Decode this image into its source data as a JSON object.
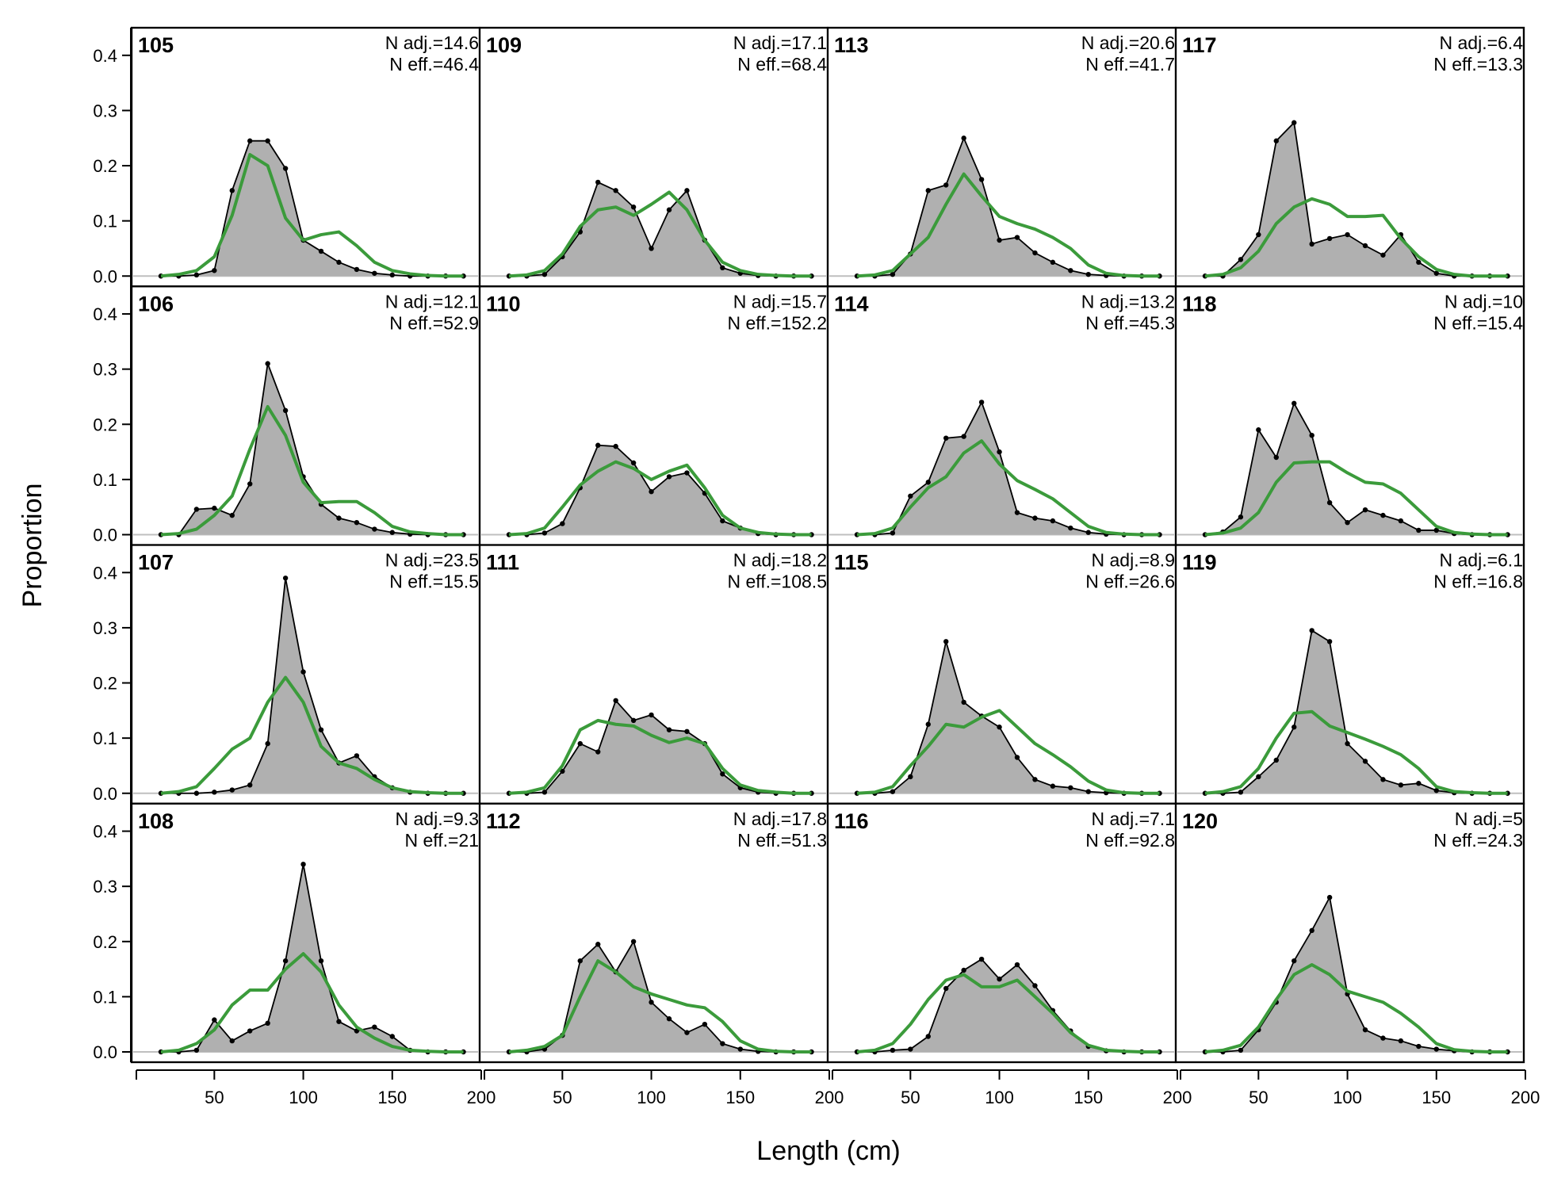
{
  "chart_data": {
    "type": "area",
    "xlabel": "Length (cm)",
    "ylabel": "Proportion",
    "xlim": [
      20,
      200
    ],
    "ylim": [
      0,
      0.45
    ],
    "x_ticks": [
      50,
      100,
      150,
      200
    ],
    "y_ticks": [
      0.0,
      0.1,
      0.2,
      0.3,
      0.4
    ],
    "y_tick_labels": [
      "0.0",
      "0.1",
      "0.2",
      "0.3",
      "0.4"
    ],
    "grid": false,
    "colors": {
      "observed_fill": "#b0b0b0",
      "observed_line": "#000000",
      "expected_line": "#3b9b3b",
      "baseline": "#bfbfbf"
    },
    "x": [
      20,
      30,
      40,
      50,
      60,
      70,
      80,
      90,
      100,
      110,
      120,
      130,
      140,
      150,
      160,
      170,
      180,
      190
    ],
    "panels": [
      {
        "id": "105",
        "n_adj": "N adj.=14.6",
        "n_eff": "N eff.=46.4",
        "obs": [
          0,
          0,
          0.002,
          0.01,
          0.155,
          0.245,
          0.245,
          0.195,
          0.065,
          0.045,
          0.025,
          0.012,
          0.005,
          0.002,
          0,
          0,
          0,
          0
        ],
        "exp": [
          0,
          0.003,
          0.01,
          0.035,
          0.11,
          0.22,
          0.2,
          0.105,
          0.065,
          0.075,
          0.08,
          0.055,
          0.025,
          0.01,
          0.004,
          0.001,
          0,
          0
        ]
      },
      {
        "id": "106",
        "n_adj": "N adj.=12.1",
        "n_eff": "N eff.=52.9",
        "obs": [
          0,
          0,
          0.046,
          0.048,
          0.035,
          0.092,
          0.31,
          0.225,
          0.105,
          0.055,
          0.03,
          0.022,
          0.01,
          0.004,
          0.001,
          0,
          0,
          0
        ],
        "exp": [
          0,
          0.002,
          0.01,
          0.035,
          0.07,
          0.155,
          0.232,
          0.18,
          0.095,
          0.058,
          0.06,
          0.06,
          0.04,
          0.015,
          0.005,
          0.002,
          0,
          0
        ]
      },
      {
        "id": "107",
        "n_adj": "N adj.=23.5",
        "n_eff": "N eff.=15.5",
        "obs": [
          0,
          0,
          0,
          0.002,
          0.006,
          0.015,
          0.09,
          0.39,
          0.22,
          0.115,
          0.055,
          0.068,
          0.03,
          0.01,
          0.002,
          0,
          0,
          0
        ],
        "exp": [
          0,
          0.003,
          0.012,
          0.045,
          0.08,
          0.1,
          0.165,
          0.21,
          0.165,
          0.085,
          0.055,
          0.045,
          0.025,
          0.01,
          0.003,
          0.001,
          0,
          0
        ]
      },
      {
        "id": "108",
        "n_adj": "N adj.=9.3",
        "n_eff": "N eff.=21",
        "obs": [
          0,
          0,
          0.003,
          0.058,
          0.02,
          0.038,
          0.052,
          0.165,
          0.34,
          0.165,
          0.055,
          0.038,
          0.045,
          0.028,
          0.003,
          0,
          0,
          0
        ],
        "exp": [
          0,
          0.003,
          0.015,
          0.04,
          0.085,
          0.112,
          0.112,
          0.15,
          0.178,
          0.145,
          0.085,
          0.045,
          0.025,
          0.01,
          0.003,
          0.001,
          0,
          0
        ]
      },
      {
        "id": "109",
        "n_adj": "N adj.=17.1",
        "n_eff": "N eff.=68.4",
        "obs": [
          0,
          0,
          0.003,
          0.035,
          0.08,
          0.17,
          0.155,
          0.125,
          0.05,
          0.12,
          0.155,
          0.065,
          0.015,
          0.005,
          0.001,
          0,
          0,
          0
        ],
        "exp": [
          0,
          0.002,
          0.01,
          0.04,
          0.09,
          0.12,
          0.125,
          0.11,
          0.13,
          0.152,
          0.12,
          0.065,
          0.025,
          0.01,
          0.003,
          0.001,
          0,
          0
        ]
      },
      {
        "id": "110",
        "n_adj": "N adj.=15.7",
        "n_eff": "N eff.=152.2",
        "obs": [
          0,
          0,
          0.003,
          0.02,
          0.085,
          0.162,
          0.16,
          0.13,
          0.078,
          0.105,
          0.112,
          0.075,
          0.025,
          0.012,
          0.002,
          0,
          0,
          0
        ],
        "exp": [
          0,
          0.002,
          0.012,
          0.05,
          0.09,
          0.115,
          0.132,
          0.12,
          0.1,
          0.115,
          0.126,
          0.085,
          0.035,
          0.012,
          0.004,
          0.001,
          0,
          0
        ]
      },
      {
        "id": "111",
        "n_adj": "N adj.=18.2",
        "n_eff": "N eff.=108.5",
        "obs": [
          0,
          0,
          0.002,
          0.04,
          0.09,
          0.075,
          0.168,
          0.132,
          0.142,
          0.115,
          0.112,
          0.09,
          0.035,
          0.01,
          0.002,
          0,
          0,
          0
        ],
        "exp": [
          0,
          0.002,
          0.01,
          0.05,
          0.115,
          0.132,
          0.125,
          0.122,
          0.105,
          0.092,
          0.1,
          0.09,
          0.045,
          0.015,
          0.005,
          0.002,
          0,
          0
        ]
      },
      {
        "id": "112",
        "n_adj": "N adj.=17.8",
        "n_eff": "N eff.=51.3",
        "obs": [
          0,
          0,
          0.005,
          0.03,
          0.165,
          0.195,
          0.145,
          0.2,
          0.09,
          0.06,
          0.035,
          0.05,
          0.015,
          0.005,
          0.001,
          0,
          0,
          0
        ],
        "exp": [
          0,
          0.003,
          0.01,
          0.03,
          0.1,
          0.165,
          0.145,
          0.118,
          0.105,
          0.095,
          0.085,
          0.08,
          0.055,
          0.02,
          0.005,
          0.001,
          0,
          0
        ]
      },
      {
        "id": "113",
        "n_adj": "N adj.=20.6",
        "n_eff": "N eff.=41.7",
        "obs": [
          0,
          0,
          0.003,
          0.04,
          0.155,
          0.165,
          0.25,
          0.175,
          0.065,
          0.07,
          0.042,
          0.025,
          0.01,
          0.003,
          0.001,
          0,
          0,
          0
        ],
        "exp": [
          0,
          0.002,
          0.01,
          0.04,
          0.07,
          0.13,
          0.185,
          0.145,
          0.108,
          0.095,
          0.085,
          0.07,
          0.05,
          0.02,
          0.005,
          0.001,
          0,
          0
        ]
      },
      {
        "id": "114",
        "n_adj": "N adj.=13.2",
        "n_eff": "N eff.=45.3",
        "obs": [
          0,
          0,
          0.003,
          0.07,
          0.095,
          0.175,
          0.178,
          0.24,
          0.15,
          0.04,
          0.03,
          0.025,
          0.012,
          0.004,
          0.001,
          0,
          0,
          0
        ],
        "exp": [
          0,
          0.002,
          0.012,
          0.05,
          0.085,
          0.105,
          0.148,
          0.17,
          0.128,
          0.098,
          0.082,
          0.065,
          0.04,
          0.015,
          0.004,
          0.001,
          0,
          0
        ]
      },
      {
        "id": "115",
        "n_adj": "N adj.=8.9",
        "n_eff": "N eff.=26.6",
        "obs": [
          0,
          0,
          0.003,
          0.03,
          0.125,
          0.275,
          0.165,
          0.14,
          0.12,
          0.065,
          0.025,
          0.013,
          0.01,
          0.003,
          0.001,
          0,
          0,
          0
        ],
        "exp": [
          0,
          0.002,
          0.012,
          0.05,
          0.085,
          0.125,
          0.12,
          0.138,
          0.15,
          0.12,
          0.09,
          0.07,
          0.048,
          0.022,
          0.006,
          0.001,
          0,
          0
        ]
      },
      {
        "id": "116",
        "n_adj": "N adj.=7.1",
        "n_eff": "N eff.=92.8",
        "obs": [
          0,
          0,
          0.003,
          0.005,
          0.028,
          0.115,
          0.148,
          0.168,
          0.132,
          0.158,
          0.12,
          0.075,
          0.038,
          0.01,
          0.002,
          0,
          0,
          0
        ],
        "exp": [
          0,
          0.003,
          0.015,
          0.05,
          0.095,
          0.13,
          0.14,
          0.118,
          0.118,
          0.13,
          0.1,
          0.07,
          0.035,
          0.012,
          0.003,
          0.001,
          0,
          0
        ]
      },
      {
        "id": "117",
        "n_adj": "N adj.=6.4",
        "n_eff": "N eff.=13.3",
        "obs": [
          0,
          0,
          0.03,
          0.075,
          0.245,
          0.278,
          0.058,
          0.068,
          0.075,
          0.055,
          0.038,
          0.075,
          0.025,
          0.005,
          0,
          0,
          0,
          0
        ],
        "exp": [
          0,
          0.003,
          0.015,
          0.045,
          0.095,
          0.125,
          0.14,
          0.13,
          0.108,
          0.108,
          0.11,
          0.068,
          0.035,
          0.012,
          0.003,
          0,
          0,
          0
        ]
      },
      {
        "id": "118",
        "n_adj": "N adj.=10",
        "n_eff": "N eff.=15.4",
        "obs": [
          0,
          0.005,
          0.032,
          0.19,
          0.14,
          0.238,
          0.18,
          0.058,
          0.022,
          0.045,
          0.035,
          0.025,
          0.008,
          0.008,
          0.002,
          0,
          0,
          0
        ],
        "exp": [
          0,
          0.003,
          0.012,
          0.04,
          0.095,
          0.13,
          0.132,
          0.132,
          0.112,
          0.095,
          0.092,
          0.075,
          0.045,
          0.015,
          0.004,
          0.001,
          0,
          0
        ]
      },
      {
        "id": "119",
        "n_adj": "N adj.=6.1",
        "n_eff": "N eff.=16.8",
        "obs": [
          0,
          0,
          0.002,
          0.03,
          0.06,
          0.12,
          0.295,
          0.275,
          0.09,
          0.058,
          0.025,
          0.015,
          0.018,
          0.005,
          0.001,
          0,
          0,
          0
        ],
        "exp": [
          0,
          0.003,
          0.012,
          0.045,
          0.1,
          0.145,
          0.148,
          0.122,
          0.11,
          0.098,
          0.085,
          0.07,
          0.045,
          0.012,
          0.003,
          0.001,
          0,
          0
        ]
      },
      {
        "id": "120",
        "n_adj": "N adj.=5",
        "n_eff": "N eff.=24.3",
        "obs": [
          0,
          0,
          0.003,
          0.04,
          0.09,
          0.165,
          0.22,
          0.28,
          0.105,
          0.04,
          0.025,
          0.02,
          0.01,
          0.005,
          0.002,
          0,
          0,
          0
        ],
        "exp": [
          0,
          0.003,
          0.012,
          0.045,
          0.095,
          0.14,
          0.158,
          0.14,
          0.11,
          0.1,
          0.09,
          0.07,
          0.045,
          0.015,
          0.004,
          0.001,
          0,
          0
        ]
      }
    ]
  }
}
